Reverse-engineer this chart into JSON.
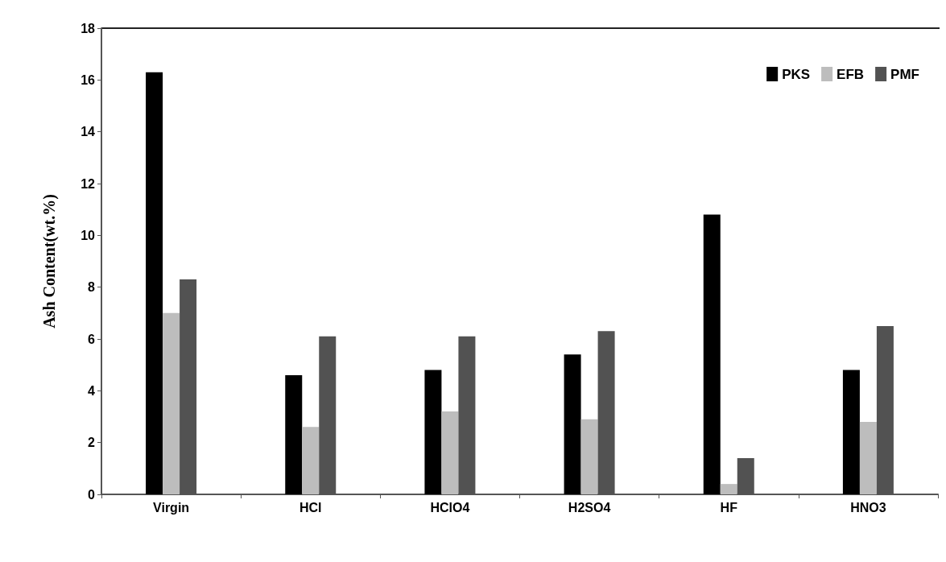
{
  "chart_data": {
    "type": "bar",
    "ylabel": "Ash Content(wt.%)",
    "categories": [
      "Virgin",
      "HCl",
      "HClO4",
      "H2SO4",
      "HF",
      "HNO3"
    ],
    "series": [
      {
        "name": "PKS",
        "color": "#000000",
        "values": [
          16.3,
          4.6,
          4.8,
          5.4,
          10.8,
          4.8
        ]
      },
      {
        "name": "EFB",
        "color": "#bdbdbd",
        "values": [
          7.0,
          2.6,
          3.2,
          2.9,
          0.4,
          2.8
        ]
      },
      {
        "name": "PMF",
        "color": "#525252",
        "values": [
          8.3,
          6.1,
          6.1,
          6.3,
          1.4,
          6.5
        ]
      }
    ],
    "ylim": [
      0,
      18
    ],
    "yticks": [
      0,
      2,
      4,
      6,
      8,
      10,
      12,
      14,
      16,
      18
    ],
    "grid": false,
    "legend": "top right"
  }
}
